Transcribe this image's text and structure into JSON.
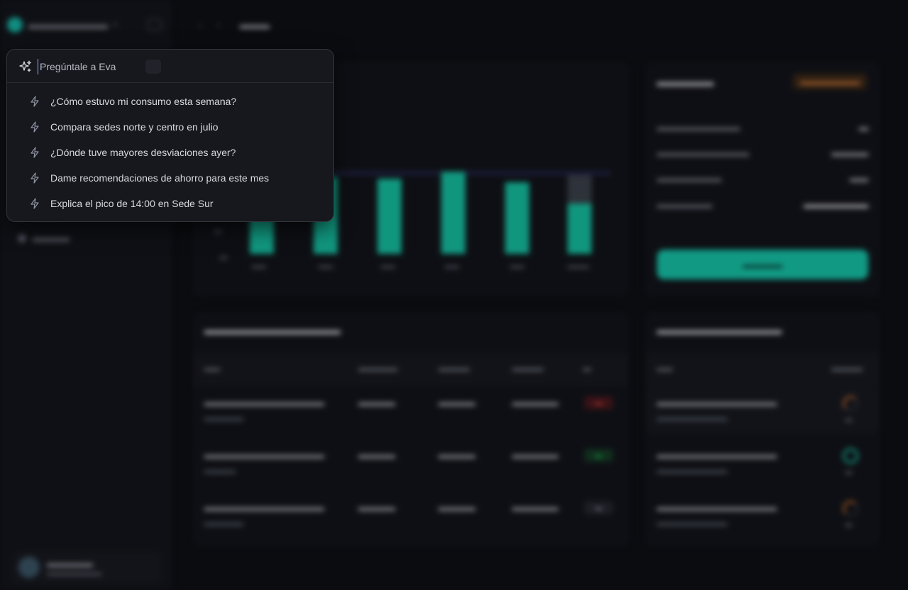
{
  "eva": {
    "placeholder": "Pregúntale a Eva",
    "suggestions": [
      "¿Cómo estuvo mi consumo esta semana?",
      "Compara sedes norte y centro en julio",
      "¿Dónde tuve mayores desviaciones ayer?",
      "Dame recomendaciones de ahorro para este mes",
      "Explica el pico de 14:00 en Sede Sur"
    ]
  },
  "colors": {
    "accent": "#13c9ab",
    "background": "#0b0c10",
    "popover": "#17181d",
    "warning": "#f08a3c"
  },
  "icons": {
    "search": "sparkle-icon",
    "suggestion": "bolt-icon",
    "sidebar_toggle": "sidebar-toggle-icon"
  }
}
